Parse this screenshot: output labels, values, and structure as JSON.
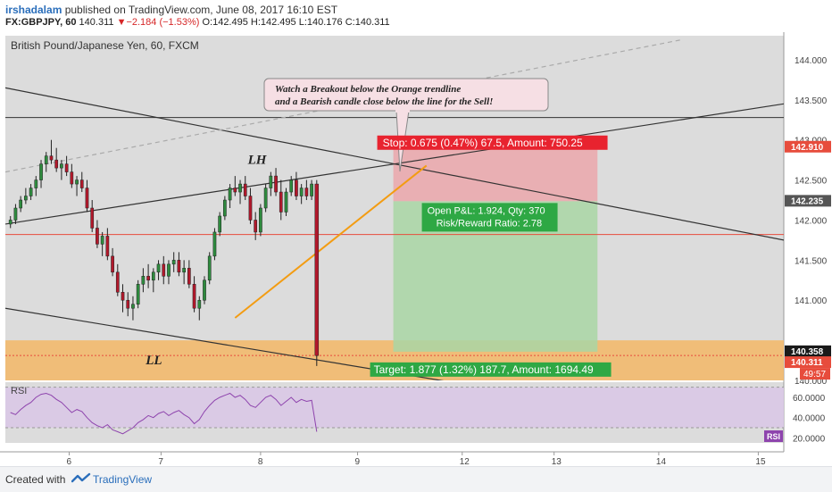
{
  "header": {
    "user": "irshadalam",
    "published": " published on TradingView.com, June 08, 2017 16:10 EST",
    "symbol": "FX:GBPJPY, 60",
    "change_arrow": "▼",
    "last": "140.311",
    "change": "−2.184 (−1.53%)",
    "ohlc": "O:142.495 H:142.495 L:140.176 C:140.311"
  },
  "footer": {
    "created_with": "Created with",
    "brand": "TradingView"
  },
  "colors": {
    "bull": "#2e8b3e",
    "bear": "#b2182b",
    "orange_line": "#f39c12",
    "zone": "#f3b766",
    "stop_zone": "#eda0a6",
    "target_zone": "#a9d6a4",
    "rsi_band": "#d9c8e6",
    "rsi_line": "#8e44ad"
  },
  "chart_data": {
    "type": "candlestick",
    "title": "British Pound/Japanese Yen, 60, FXCM",
    "x_ticks": [
      {
        "label": "6",
        "x": 25
      },
      {
        "label": "7",
        "x": 61
      },
      {
        "label": "8",
        "x": 100
      },
      {
        "label": "9",
        "x": 138
      },
      {
        "label": "12",
        "x": 179
      },
      {
        "label": "13",
        "x": 215
      },
      {
        "label": "14",
        "x": 256
      },
      {
        "label": "15",
        "x": 295
      }
    ],
    "y_ticks": [
      "144.000",
      "143.500",
      "143.000",
      "142.500",
      "142.000",
      "141.500",
      "141.000",
      "140.000"
    ],
    "ylim": [
      140.0,
      144.3
    ],
    "xlim": [
      0,
      305
    ],
    "price_labels": [
      {
        "value": 142.91,
        "label": "142.910",
        "color": "#e74c3c"
      },
      {
        "value": 142.235,
        "label": "142.235",
        "color": "#555555"
      },
      {
        "value": 140.358,
        "label": "140.358",
        "color": "#1a1a1a"
      },
      {
        "value": 140.311,
        "label": "140.311",
        "color": "#e74c3c"
      }
    ],
    "countdown": "49:57",
    "candles": [
      [
        0,
        141.95,
        142.05,
        141.9,
        142.0
      ],
      [
        1,
        142.0,
        142.2,
        141.95,
        142.15
      ],
      [
        2,
        142.15,
        142.3,
        142.1,
        142.25
      ],
      [
        3,
        142.25,
        142.4,
        142.2,
        142.3
      ],
      [
        4,
        142.3,
        142.45,
        142.25,
        142.4
      ],
      [
        5,
        142.4,
        142.55,
        142.3,
        142.5
      ],
      [
        6,
        142.5,
        142.75,
        142.4,
        142.7
      ],
      [
        7,
        142.7,
        142.85,
        142.6,
        142.8
      ],
      [
        8,
        142.8,
        143.0,
        142.7,
        142.75
      ],
      [
        9,
        142.75,
        142.9,
        142.6,
        142.65
      ],
      [
        10,
        142.65,
        142.75,
        142.5,
        142.7
      ],
      [
        11,
        142.7,
        142.8,
        142.55,
        142.6
      ],
      [
        12,
        142.6,
        142.7,
        142.4,
        142.45
      ],
      [
        13,
        142.45,
        142.55,
        142.3,
        142.5
      ],
      [
        14,
        142.5,
        142.6,
        142.35,
        142.4
      ],
      [
        15,
        142.4,
        142.5,
        142.1,
        142.15
      ],
      [
        16,
        142.15,
        142.25,
        141.85,
        141.9
      ],
      [
        17,
        141.9,
        142.0,
        141.65,
        141.7
      ],
      [
        18,
        141.7,
        141.85,
        141.55,
        141.8
      ],
      [
        19,
        141.8,
        141.9,
        141.5,
        141.55
      ],
      [
        20,
        141.55,
        141.65,
        141.3,
        141.35
      ],
      [
        21,
        141.35,
        141.45,
        141.05,
        141.1
      ],
      [
        22,
        141.1,
        141.2,
        140.85,
        141.0
      ],
      [
        23,
        141.0,
        141.1,
        140.8,
        140.9
      ],
      [
        24,
        140.9,
        141.05,
        140.75,
        140.95
      ],
      [
        25,
        140.95,
        141.25,
        140.9,
        141.2
      ],
      [
        26,
        141.2,
        141.4,
        141.1,
        141.3
      ],
      [
        27,
        141.3,
        141.45,
        141.15,
        141.25
      ],
      [
        28,
        141.25,
        141.4,
        141.1,
        141.35
      ],
      [
        29,
        141.35,
        141.5,
        141.25,
        141.45
      ],
      [
        30,
        141.45,
        141.55,
        141.2,
        141.3
      ],
      [
        31,
        141.3,
        141.5,
        141.2,
        141.45
      ],
      [
        32,
        141.45,
        141.6,
        141.35,
        141.5
      ],
      [
        33,
        141.5,
        141.6,
        141.3,
        141.35
      ],
      [
        34,
        141.35,
        141.5,
        141.2,
        141.4
      ],
      [
        35,
        141.4,
        141.5,
        141.15,
        141.2
      ],
      [
        36,
        141.2,
        141.3,
        140.85,
        140.9
      ],
      [
        37,
        140.9,
        141.05,
        140.75,
        141.0
      ],
      [
        38,
        141.0,
        141.3,
        140.95,
        141.25
      ],
      [
        39,
        141.25,
        141.6,
        141.2,
        141.55
      ],
      [
        40,
        141.55,
        141.9,
        141.5,
        141.85
      ],
      [
        41,
        141.85,
        142.1,
        141.8,
        142.05
      ],
      [
        42,
        142.05,
        142.3,
        142.0,
        142.25
      ],
      [
        43,
        142.25,
        142.45,
        142.15,
        142.4
      ],
      [
        44,
        142.4,
        142.55,
        142.3,
        142.35
      ],
      [
        45,
        142.35,
        142.5,
        142.2,
        142.45
      ],
      [
        46,
        142.45,
        142.55,
        142.25,
        142.3
      ],
      [
        47,
        142.3,
        142.4,
        141.95,
        142.0
      ],
      [
        48,
        142.0,
        142.1,
        141.75,
        141.85
      ],
      [
        49,
        141.85,
        142.2,
        141.8,
        142.15
      ],
      [
        50,
        142.15,
        142.45,
        142.1,
        142.4
      ],
      [
        51,
        142.4,
        142.6,
        142.3,
        142.55
      ],
      [
        52,
        142.55,
        142.65,
        142.3,
        142.35
      ],
      [
        53,
        142.35,
        142.5,
        142.0,
        142.1
      ],
      [
        54,
        142.1,
        142.4,
        142.05,
        142.35
      ],
      [
        55,
        142.35,
        142.55,
        142.3,
        142.5
      ],
      [
        56,
        142.5,
        142.6,
        142.25,
        142.3
      ],
      [
        57,
        142.3,
        142.45,
        142.2,
        142.4
      ],
      [
        58,
        142.4,
        142.5,
        142.25,
        142.3
      ],
      [
        59,
        142.3,
        142.5,
        142.25,
        142.45
      ],
      [
        60,
        142.45,
        142.5,
        140.18,
        140.31
      ]
    ],
    "trendlines": [
      {
        "name": "upper-channel",
        "x1": 0,
        "y1": 143.65,
        "x2": 305,
        "y2": 141.75,
        "color": "#333333",
        "dash": ""
      },
      {
        "name": "lower-channel",
        "x1": 0,
        "y1": 140.9,
        "x2": 180,
        "y2": 139.95,
        "color": "#333333",
        "dash": ""
      },
      {
        "name": "rising-line",
        "x1": 0,
        "y1": 141.95,
        "x2": 305,
        "y2": 143.45,
        "color": "#333333",
        "dash": ""
      },
      {
        "name": "dashed-line",
        "x1": 0,
        "y1": 142.6,
        "x2": 265,
        "y2": 144.25,
        "color": "#aaaaaa",
        "dash": "5,4"
      },
      {
        "name": "orange-trendline",
        "x1": 90,
        "y1": 140.78,
        "x2": 165,
        "y2": 142.68,
        "color": "#f39c12",
        "dash": ""
      }
    ],
    "hlines": [
      {
        "name": "resistance-line",
        "value": 143.28,
        "color": "#333333"
      },
      {
        "name": "mid-red-line",
        "value": 141.82,
        "color": "#e74c3c"
      }
    ],
    "zone": {
      "from": 140.0,
      "to": 140.5
    },
    "position": {
      "x_start": 152,
      "x_end": 232,
      "entry": 142.235,
      "stop": 142.91,
      "target": 140.358,
      "stop_label": "Stop: 0.675 (0.47%) 67.5, Amount: 750.25",
      "pnl_label": "Open P&L: 1.924, Qty: 370",
      "rr_label": "Risk/Reward Ratio: 2.78",
      "target_label": "Target: 1.877 (1.32%) 187.7, Amount: 1694.49"
    },
    "annotations": [
      {
        "name": "lh-label",
        "text": "LH",
        "x": 95,
        "y": 142.7
      },
      {
        "name": "ll-label",
        "text": "LL",
        "x": 55,
        "y": 140.2
      }
    ],
    "callout": {
      "line1": "Watch a Breakout below the Orange trendline",
      "line2": "and a Bearish candle close below the line for the Sell!"
    },
    "rsi": {
      "label": "RSI",
      "y_ticks": [
        "60.0000",
        "40.0000",
        "20.0000"
      ],
      "ylim": [
        15,
        75
      ],
      "band": [
        30,
        70
      ],
      "values": [
        45,
        43,
        48,
        52,
        55,
        60,
        63,
        64,
        62,
        58,
        55,
        50,
        45,
        48,
        46,
        40,
        35,
        32,
        30,
        33,
        28,
        26,
        24,
        27,
        30,
        35,
        38,
        42,
        40,
        44,
        46,
        42,
        45,
        47,
        43,
        40,
        34,
        38,
        46,
        52,
        57,
        60,
        62,
        64,
        60,
        62,
        58,
        52,
        50,
        55,
        60,
        62,
        58,
        52,
        56,
        60,
        55,
        58,
        56,
        57,
        26
      ],
      "badge": "RSI"
    }
  }
}
